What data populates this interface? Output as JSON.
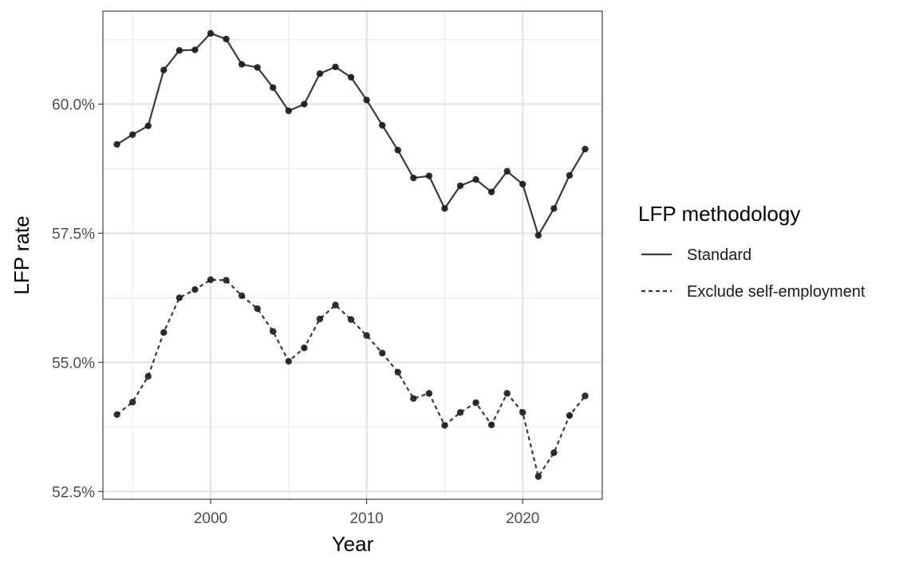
{
  "chart_data": {
    "type": "line",
    "title": "",
    "xlabel": "Year",
    "ylabel": "LFP rate",
    "xlim": [
      1993.1,
      2025.1
    ],
    "ylim": [
      52.35,
      61.8
    ],
    "x_ticks": [
      2000,
      2010,
      2020
    ],
    "x_tick_labels": [
      "2000",
      "2010",
      "2020"
    ],
    "y_ticks": [
      52.5,
      55.0,
      57.5,
      60.0
    ],
    "y_tick_labels": [
      "52.5%",
      "55.0%",
      "57.5%",
      "60.0%"
    ],
    "grid": true,
    "legend": {
      "title": "LFP methodology",
      "position": "right"
    },
    "x": [
      1994,
      1995,
      1996,
      1997,
      1998,
      1999,
      2000,
      2001,
      2002,
      2003,
      2004,
      2005,
      2006,
      2007,
      2008,
      2009,
      2010,
      2011,
      2012,
      2013,
      2014,
      2015,
      2016,
      2017,
      2018,
      2019,
      2020,
      2021,
      2022,
      2023,
      2024
    ],
    "series": [
      {
        "name": "Standard",
        "line_style": "solid",
        "values": [
          59.22,
          59.41,
          59.58,
          60.66,
          61.04,
          61.05,
          61.37,
          61.26,
          60.77,
          60.71,
          60.32,
          59.87,
          60.0,
          60.59,
          60.72,
          60.52,
          60.08,
          59.59,
          59.11,
          58.57,
          58.61,
          57.98,
          58.42,
          58.54,
          58.3,
          58.7,
          58.45,
          57.46,
          57.98,
          58.62,
          59.13
        ]
      },
      {
        "name": "Exclude self-employment",
        "line_style": "dashed",
        "values": [
          53.99,
          54.23,
          54.73,
          55.58,
          56.25,
          56.41,
          56.6,
          56.59,
          56.29,
          56.04,
          55.6,
          55.02,
          55.28,
          55.84,
          56.11,
          55.83,
          55.52,
          55.18,
          54.81,
          54.3,
          54.4,
          53.78,
          54.03,
          54.22,
          53.79,
          54.4,
          54.03,
          52.79,
          53.25,
          53.97,
          54.35
        ]
      }
    ]
  }
}
